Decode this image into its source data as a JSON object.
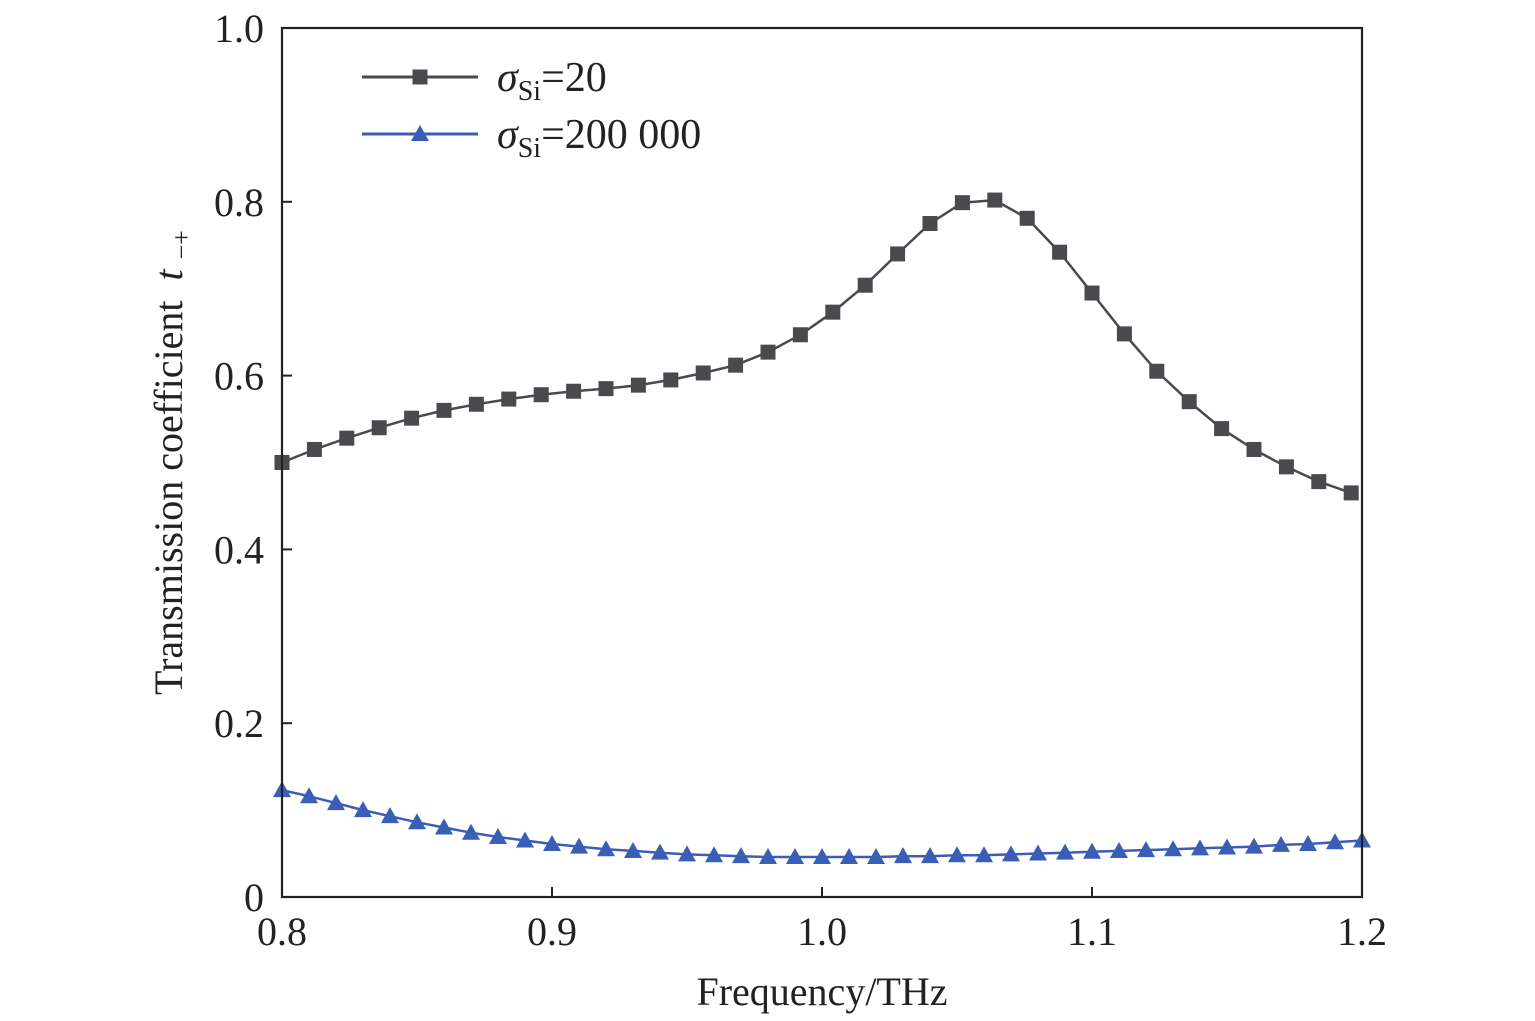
{
  "chart_data": {
    "type": "line",
    "xlabel": "Frequency/THz",
    "ylabel": "Transmission coefficient",
    "ylabel_symbol": "t",
    "ylabel_subscript": "−+",
    "xlim": [
      0.8,
      1.2
    ],
    "ylim": [
      0,
      1.0
    ],
    "xticks": [
      0.8,
      0.9,
      1.0,
      1.1,
      1.2
    ],
    "xtick_labels": [
      "0.8",
      "0.9",
      "1.0",
      "1.1",
      "1.2"
    ],
    "yticks": [
      0,
      0.2,
      0.4,
      0.6,
      0.8,
      1.0
    ],
    "ytick_labels": [
      "0",
      "0.2",
      "0.4",
      "0.6",
      "0.8",
      "1.0"
    ],
    "grid": false,
    "legend_position": "top-left",
    "series": [
      {
        "name": "σSi=20",
        "label_symbol": "σ",
        "label_sub": "Si",
        "label_rest": "=20",
        "color": "#4a4a4e",
        "marker": "square",
        "x": [
          0.8,
          0.812,
          0.824,
          0.836,
          0.848,
          0.86,
          0.872,
          0.884,
          0.896,
          0.908,
          0.92,
          0.932,
          0.944,
          0.956,
          0.968,
          0.98,
          0.992,
          1.004,
          1.016,
          1.028,
          1.04,
          1.052,
          1.064,
          1.076,
          1.088,
          1.1,
          1.112,
          1.124,
          1.136,
          1.148,
          1.16,
          1.172,
          1.184,
          1.196
        ],
        "y": [
          0.5,
          0.515,
          0.528,
          0.54,
          0.551,
          0.56,
          0.567,
          0.573,
          0.578,
          0.582,
          0.585,
          0.589,
          0.595,
          0.603,
          0.612,
          0.627,
          0.647,
          0.673,
          0.704,
          0.74,
          0.775,
          0.799,
          0.802,
          0.781,
          0.742,
          0.695,
          0.648,
          0.605,
          0.57,
          0.539,
          0.515,
          0.495,
          0.478,
          0.465
        ]
      },
      {
        "name": "σSi=200 000",
        "label_symbol": "σ",
        "label_sub": "Si",
        "label_rest": "=200 000",
        "color": "#3a5db5",
        "marker": "triangle",
        "x": [
          0.8,
          0.81,
          0.82,
          0.83,
          0.84,
          0.85,
          0.86,
          0.87,
          0.88,
          0.89,
          0.9,
          0.91,
          0.92,
          0.93,
          0.94,
          0.95,
          0.96,
          0.97,
          0.98,
          0.99,
          1.0,
          1.01,
          1.02,
          1.03,
          1.04,
          1.05,
          1.06,
          1.07,
          1.08,
          1.09,
          1.1,
          1.11,
          1.12,
          1.13,
          1.14,
          1.15,
          1.16,
          1.17,
          1.18,
          1.19,
          1.2
        ],
        "y": [
          0.123,
          0.116,
          0.108,
          0.1,
          0.093,
          0.086,
          0.08,
          0.074,
          0.069,
          0.065,
          0.061,
          0.058,
          0.055,
          0.053,
          0.051,
          0.049,
          0.048,
          0.047,
          0.046,
          0.046,
          0.046,
          0.046,
          0.046,
          0.047,
          0.047,
          0.048,
          0.048,
          0.049,
          0.05,
          0.051,
          0.052,
          0.053,
          0.054,
          0.055,
          0.056,
          0.057,
          0.058,
          0.06,
          0.061,
          0.063,
          0.065
        ]
      }
    ]
  }
}
